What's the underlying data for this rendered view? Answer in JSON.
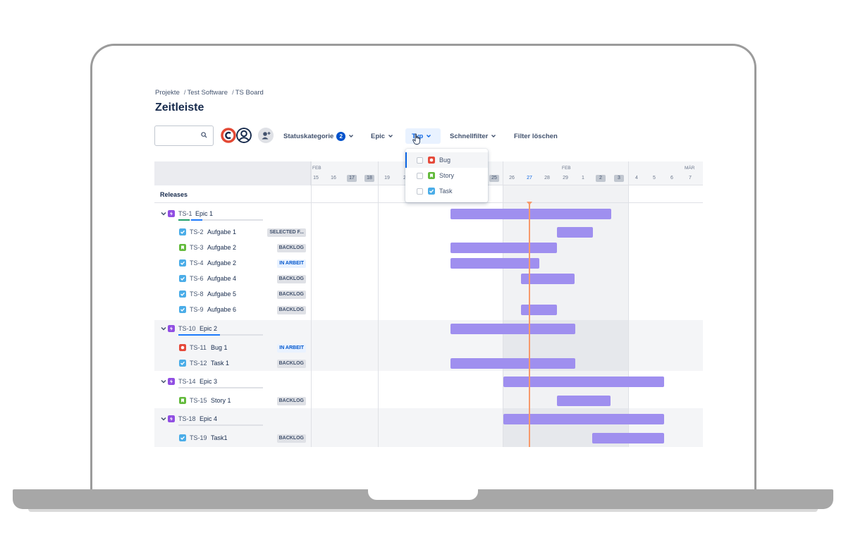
{
  "breadcrumb": [
    "Projekte",
    "Test Software",
    "TS Board"
  ],
  "page_title": "Zeitleiste",
  "search": {
    "value": "",
    "placeholder": ""
  },
  "filters": {
    "status_label": "Statuskategorie",
    "status_count": "2",
    "epic_label": "Epic",
    "typ_label": "Typ",
    "quick_label": "Schnellfilter",
    "clear_label": "Filter löschen"
  },
  "type_dropdown": {
    "options": [
      {
        "label": "Bug",
        "checked": false,
        "color": "#e5493a"
      },
      {
        "label": "Story",
        "checked": false,
        "color": "#63ba3c"
      },
      {
        "label": "Task",
        "checked": false,
        "color": "#4bade8"
      }
    ]
  },
  "timeline": {
    "months": [
      "FEB",
      "FEB",
      "MÄR"
    ],
    "days": [
      "15",
      "16",
      "17",
      "18",
      "19",
      "2",
      "25",
      "26",
      "27",
      "28",
      "29",
      "1",
      "2",
      "3",
      "4",
      "5",
      "6",
      "7"
    ],
    "releases_label": "Releases"
  },
  "rows": [
    {
      "key": "TS-1",
      "title": "Epic 1",
      "type": "epic",
      "status": ""
    },
    {
      "key": "TS-2",
      "title": "Aufgabe 1",
      "type": "task",
      "status": "SELECTED F..."
    },
    {
      "key": "TS-3",
      "title": "Aufgabe 2",
      "type": "story",
      "status": "BACKLOG"
    },
    {
      "key": "TS-4",
      "title": "Aufgabe 2",
      "type": "task",
      "status": "IN ARBEIT"
    },
    {
      "key": "TS-6",
      "title": "Aufgabe 4",
      "type": "task",
      "status": "BACKLOG"
    },
    {
      "key": "TS-8",
      "title": "Aufgabe 5",
      "type": "task",
      "status": "BACKLOG"
    },
    {
      "key": "TS-9",
      "title": "Aufgabe 6",
      "type": "task",
      "status": "BACKLOG"
    },
    {
      "key": "TS-10",
      "title": "Epic 2",
      "type": "epic",
      "status": ""
    },
    {
      "key": "TS-11",
      "title": "Bug 1",
      "type": "bug",
      "status": "IN ARBEIT"
    },
    {
      "key": "TS-12",
      "title": "Task 1",
      "type": "task",
      "status": "BACKLOG"
    },
    {
      "key": "TS-14",
      "title": "Epic 3",
      "type": "epic",
      "status": ""
    },
    {
      "key": "TS-15",
      "title": "Story 1",
      "type": "story",
      "status": "BACKLOG"
    },
    {
      "key": "TS-18",
      "title": "Epic 4",
      "type": "epic",
      "status": ""
    },
    {
      "key": "TS-19",
      "title": "Task1",
      "type": "task",
      "status": "BACKLOG"
    }
  ],
  "colors": {
    "epic": "#904ee2",
    "task": "#4bade8",
    "story": "#63ba3c",
    "bug": "#e5493a",
    "bar": "#9f8fef",
    "today": "#f79a6b",
    "accent": "#0c66e4"
  }
}
